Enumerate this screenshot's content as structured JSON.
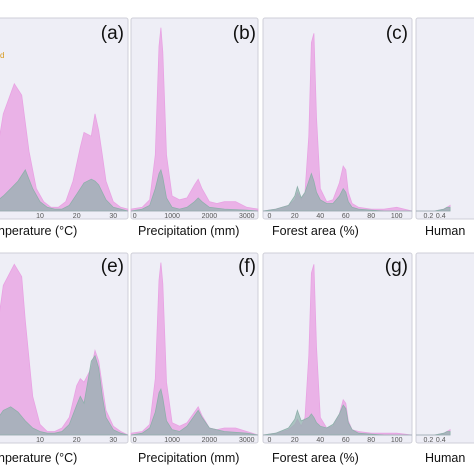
{
  "chart_data": {
    "type": "area",
    "colors": {
      "pink": "#e8a3e3",
      "gray": "#8fb0ab",
      "legend_orange": "#d79a1f",
      "legend_green": "#6fb57a"
    },
    "legend_fragments": [
      "d",
      ""
    ],
    "panels": [
      {
        "letter": "(a)",
        "xlabel": "nperature (°C)",
        "ticks": [
          {
            "x": 10,
            "label": "10"
          },
          {
            "x": 20,
            "label": "20"
          },
          {
            "x": 30,
            "label": "30"
          }
        ],
        "xlim": [
          -2,
          34
        ],
        "ylim": [
          0,
          1
        ],
        "series": [
          {
            "name": "",
            "color": "pink",
            "x": [
              -2,
              0,
              3,
              5,
              7,
              9,
              11,
              13,
              15,
              17,
              19,
              21,
              22,
              24,
              25,
              26,
              27,
              28,
              30,
              32,
              34
            ],
            "y": [
              0.28,
              0.52,
              0.68,
              0.62,
              0.32,
              0.12,
              0.05,
              0.02,
              0.02,
              0.05,
              0.16,
              0.34,
              0.42,
              0.4,
              0.52,
              0.43,
              0.3,
              0.16,
              0.05,
              0.02,
              0.01
            ]
          },
          {
            "name": "",
            "color": "gray",
            "x": [
              -2,
              0,
              2,
              4,
              6,
              8,
              10,
              12,
              14,
              16,
              18,
              20,
              22,
              24,
              25,
              26,
              28,
              30,
              32,
              34
            ],
            "y": [
              0.05,
              0.08,
              0.12,
              0.16,
              0.22,
              0.12,
              0.05,
              0.02,
              0.01,
              0.01,
              0.03,
              0.09,
              0.15,
              0.17,
              0.16,
              0.14,
              0.06,
              0.02,
              0.01,
              0
            ]
          }
        ]
      },
      {
        "letter": "(b)",
        "xlabel": "Precipitation (mm)",
        "ticks": [
          {
            "x": 0,
            "label": "0"
          },
          {
            "x": 1000,
            "label": "1000"
          },
          {
            "x": 2000,
            "label": "2000"
          },
          {
            "x": 3000,
            "label": "3000"
          }
        ],
        "xlim": [
          -100,
          3300
        ],
        "ylim": [
          0,
          1
        ],
        "series": [
          {
            "name": "",
            "color": "pink",
            "x": [
              -100,
              200,
              400,
              550,
              650,
              700,
              750,
              850,
              1000,
              1200,
              1400,
              1600,
              1700,
              1800,
              2000,
              2200,
              2400,
              2700,
              3000,
              3300
            ],
            "y": [
              0.01,
              0.02,
              0.06,
              0.3,
              0.88,
              0.98,
              0.85,
              0.3,
              0.08,
              0.06,
              0.07,
              0.14,
              0.17,
              0.12,
              0.05,
              0.04,
              0.05,
              0.05,
              0.02,
              0.01
            ]
          },
          {
            "name": "",
            "color": "gray",
            "x": [
              -100,
              200,
              400,
              550,
              650,
              700,
              750,
              850,
              1000,
              1200,
              1400,
              1600,
              1700,
              1800,
              2000,
              2400,
              3000,
              3300
            ],
            "y": [
              0,
              0.01,
              0.03,
              0.12,
              0.2,
              0.22,
              0.18,
              0.07,
              0.02,
              0.01,
              0.02,
              0.05,
              0.07,
              0.05,
              0.02,
              0.01,
              0.005,
              0
            ]
          }
        ]
      },
      {
        "letter": "(c)",
        "xlabel": "Forest area (%)",
        "ticks": [
          {
            "x": 0,
            "label": "0"
          },
          {
            "x": 20,
            "label": "20"
          },
          {
            "x": 40,
            "label": "40"
          },
          {
            "x": 60,
            "label": "60"
          },
          {
            "x": 80,
            "label": "80"
          },
          {
            "x": 100,
            "label": "100"
          }
        ],
        "xlim": [
          -5,
          112
        ],
        "ylim": [
          0,
          1
        ],
        "series": [
          {
            "name": "",
            "color": "pink",
            "x": [
              -5,
              5,
              15,
              20,
              22,
              25,
              28,
              31,
              33,
              35,
              37,
              40,
              45,
              50,
              55,
              58,
              60,
              62,
              65,
              70,
              80,
              90,
              100,
              112
            ],
            "y": [
              0,
              0.01,
              0.03,
              0.06,
              0.1,
              0.06,
              0.1,
              0.4,
              0.9,
              0.95,
              0.5,
              0.12,
              0.05,
              0.06,
              0.15,
              0.24,
              0.22,
              0.1,
              0.04,
              0.02,
              0.01,
              0.01,
              0.02,
              0
            ]
          },
          {
            "name": "",
            "color": "gray",
            "x": [
              -5,
              5,
              15,
              20,
              22,
              25,
              28,
              31,
              33,
              35,
              37,
              40,
              45,
              50,
              55,
              58,
              60,
              62,
              65,
              70,
              80,
              90,
              100,
              112
            ],
            "y": [
              0,
              0.01,
              0.03,
              0.08,
              0.13,
              0.07,
              0.1,
              0.16,
              0.2,
              0.16,
              0.1,
              0.06,
              0.04,
              0.04,
              0.08,
              0.12,
              0.1,
              0.05,
              0.02,
              0.01,
              0.005,
              0,
              0,
              0
            ]
          }
        ]
      },
      {
        "letter": "",
        "xlabel": "Human",
        "ticks": [
          {
            "x": 0.2,
            "label": "0.2"
          },
          {
            "x": 0.4,
            "label": "0.4"
          }
        ],
        "xlim": [
          0,
          1
        ],
        "ylim": [
          0,
          1
        ],
        "series": [
          {
            "name": "",
            "color": "pink",
            "x": [
              0,
              0.3,
              0.45,
              0.5,
              0.55
            ],
            "y": [
              0,
              0,
              0.01,
              0.02,
              0.03
            ]
          },
          {
            "name": "",
            "color": "gray",
            "x": [
              0,
              0.3,
              0.45,
              0.5,
              0.55
            ],
            "y": [
              0,
              0,
              0.01,
              0.02,
              0.02
            ]
          }
        ]
      },
      {
        "letter": "(e)",
        "xlabel": "nperature (°C)",
        "ticks": [
          {
            "x": 10,
            "label": "10"
          },
          {
            "x": 20,
            "label": "20"
          },
          {
            "x": 30,
            "label": "30"
          }
        ],
        "xlim": [
          -2,
          34
        ],
        "ylim": [
          0,
          1
        ],
        "series": [
          {
            "name": "",
            "color": "pink",
            "x": [
              -2,
              0,
              3,
              5,
              6,
              8,
              10,
              12,
              14,
              16,
              18,
              20,
              21,
              22,
              24,
              25,
              26,
              27,
              28,
              30,
              32,
              34
            ],
            "y": [
              0.55,
              0.85,
              0.97,
              0.9,
              0.65,
              0.22,
              0.06,
              0.02,
              0.02,
              0.04,
              0.1,
              0.28,
              0.32,
              0.3,
              0.38,
              0.48,
              0.42,
              0.28,
              0.14,
              0.05,
              0.02,
              0
            ]
          },
          {
            "name": "",
            "color": "gray",
            "x": [
              -2,
              0,
              2,
              4,
              6,
              8,
              10,
              12,
              14,
              16,
              18,
              20,
              21,
              22,
              23,
              24,
              25,
              26,
              27,
              28,
              30,
              32,
              34
            ],
            "y": [
              0.08,
              0.14,
              0.16,
              0.13,
              0.08,
              0.04,
              0.02,
              0.01,
              0.01,
              0.02,
              0.06,
              0.17,
              0.22,
              0.18,
              0.3,
              0.42,
              0.45,
              0.38,
              0.22,
              0.1,
              0.03,
              0.01,
              0
            ]
          }
        ]
      },
      {
        "letter": "(f)",
        "xlabel": "Precipitation (mm)",
        "ticks": [
          {
            "x": 0,
            "label": "0"
          },
          {
            "x": 1000,
            "label": "1000"
          },
          {
            "x": 2000,
            "label": "2000"
          },
          {
            "x": 3000,
            "label": "3000"
          }
        ],
        "xlim": [
          -100,
          3300
        ],
        "ylim": [
          0,
          1
        ],
        "series": [
          {
            "name": "",
            "color": "pink",
            "x": [
              -100,
              200,
              400,
              550,
              650,
              700,
              750,
              850,
              1000,
              1200,
              1400,
              1600,
              1700,
              1800,
              2000,
              2200,
              2400,
              2700,
              3000,
              3300
            ],
            "y": [
              0.01,
              0.02,
              0.06,
              0.32,
              0.88,
              0.98,
              0.86,
              0.3,
              0.07,
              0.05,
              0.07,
              0.13,
              0.16,
              0.11,
              0.04,
              0.03,
              0.04,
              0.04,
              0.02,
              0
            ]
          },
          {
            "name": "",
            "color": "gray",
            "x": [
              -100,
              200,
              400,
              550,
              650,
              700,
              750,
              850,
              1000,
              1200,
              1400,
              1600,
              1700,
              1800,
              2000,
              2400,
              3000,
              3300
            ],
            "y": [
              0,
              0.01,
              0.04,
              0.13,
              0.24,
              0.26,
              0.21,
              0.08,
              0.03,
              0.02,
              0.05,
              0.11,
              0.14,
              0.1,
              0.04,
              0.02,
              0.01,
              0
            ]
          }
        ]
      },
      {
        "letter": "(g)",
        "xlabel": "Forest area (%)",
        "ticks": [
          {
            "x": 0,
            "label": "0"
          },
          {
            "x": 20,
            "label": "20"
          },
          {
            "x": 40,
            "label": "40"
          },
          {
            "x": 60,
            "label": "60"
          },
          {
            "x": 80,
            "label": "80"
          },
          {
            "x": 100,
            "label": "100"
          }
        ],
        "xlim": [
          -5,
          112
        ],
        "ylim": [
          0,
          1
        ],
        "series": [
          {
            "name": "",
            "color": "pink",
            "x": [
              -5,
              5,
              15,
              20,
              22,
              25,
              28,
              31,
              33,
              35,
              37,
              40,
              45,
              50,
              55,
              58,
              60,
              62,
              65,
              70,
              80,
              90,
              100,
              112
            ],
            "y": [
              0,
              0.01,
              0.03,
              0.06,
              0.09,
              0.05,
              0.1,
              0.45,
              0.92,
              0.97,
              0.5,
              0.1,
              0.04,
              0.05,
              0.12,
              0.2,
              0.18,
              0.08,
              0.03,
              0.02,
              0.01,
              0.01,
              0.01,
              0
            ]
          },
          {
            "name": "",
            "color": "gray",
            "x": [
              -5,
              5,
              15,
              20,
              22,
              25,
              28,
              31,
              33,
              35,
              37,
              40,
              45,
              50,
              55,
              58,
              60,
              62,
              65,
              70,
              80,
              90,
              100,
              112
            ],
            "y": [
              0,
              0.01,
              0.04,
              0.09,
              0.14,
              0.08,
              0.09,
              0.1,
              0.12,
              0.1,
              0.07,
              0.05,
              0.04,
              0.06,
              0.12,
              0.17,
              0.15,
              0.07,
              0.03,
              0.01,
              0.005,
              0,
              0,
              0
            ]
          }
        ]
      },
      {
        "letter": "",
        "xlabel": "Human",
        "ticks": [
          {
            "x": 0.2,
            "label": "0.2"
          },
          {
            "x": 0.4,
            "label": "0.4"
          }
        ],
        "xlim": [
          0,
          1
        ],
        "ylim": [
          0,
          1
        ],
        "series": [
          {
            "name": "",
            "color": "pink",
            "x": [
              0,
              0.3,
              0.45,
              0.5,
              0.55
            ],
            "y": [
              0,
              0,
              0.01,
              0.02,
              0.03
            ]
          },
          {
            "name": "",
            "color": "gray",
            "x": [
              0,
              0.3,
              0.45,
              0.5,
              0.55
            ],
            "y": [
              0,
              0,
              0.01,
              0.02,
              0.02
            ]
          }
        ]
      }
    ]
  }
}
